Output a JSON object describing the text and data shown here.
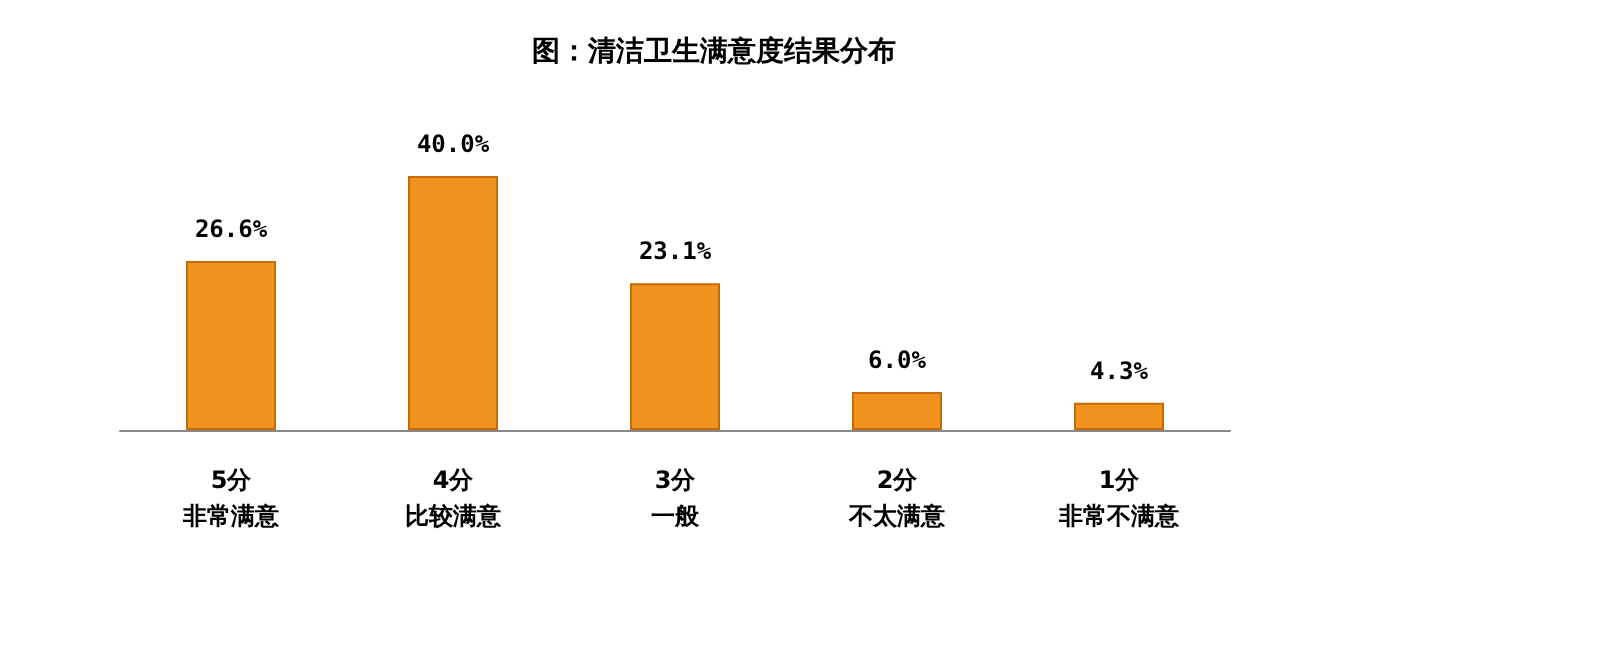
{
  "chart_data": {
    "type": "bar",
    "title": "图：清洁卫生满意度结果分布",
    "categories": [
      "5分非常满意",
      "4分比较满意",
      "3分一般",
      "2分不太满意",
      "1分非常不满意"
    ],
    "values": [
      26.6,
      40.0,
      23.1,
      6.0,
      4.3
    ],
    "value_labels": [
      "26.6%",
      "40.0%",
      "23.1%",
      "6.0%",
      "4.3%"
    ],
    "color": "#f0921e",
    "tick_labels": "x"
  }
}
